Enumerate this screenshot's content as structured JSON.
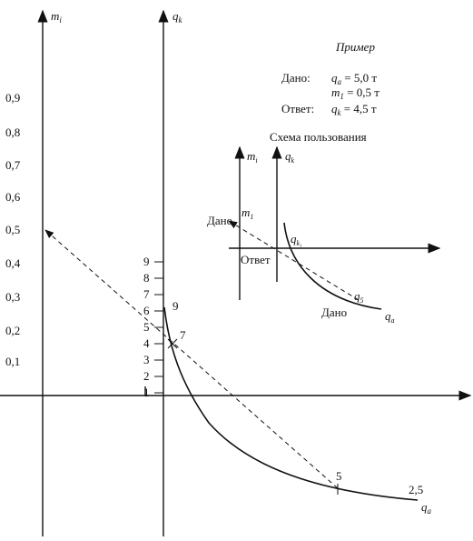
{
  "axes": {
    "m": {
      "main": "m",
      "sub": "i"
    },
    "q_k": {
      "main": "q",
      "sub": "k"
    },
    "q_a": {
      "main": "q",
      "sub": "a"
    }
  },
  "m_ticks": [
    "0,1",
    "0,2",
    "0,3",
    "0,4",
    "0,5",
    "0,6",
    "0,7",
    "0,8",
    "0,9"
  ],
  "qk_ticks": [
    "1",
    "2",
    "3",
    "4",
    "5",
    "6",
    "7",
    "8",
    "9"
  ],
  "curve_labels": {
    "p9": "9",
    "p7": "7",
    "p5": "5",
    "p25": "2,5"
  },
  "example": {
    "title": "Пример",
    "given_label": "Дано:",
    "qa": {
      "main": "q",
      "sub": "a",
      "rest": " = 5,0 т"
    },
    "m1": {
      "main": "m",
      "sub": "1",
      "rest": " = 0,5 т"
    },
    "answer_label": "Ответ:",
    "qk": {
      "main": "q",
      "sub": "k",
      "rest": " = 4,5 т"
    }
  },
  "scheme": {
    "title": "Схема пользования",
    "m_axis": {
      "main": "m",
      "sub": "i"
    },
    "qk_axis": {
      "main": "q",
      "sub": "k"
    },
    "given_left": "Дано",
    "m1": {
      "main": "m",
      "sub": "1"
    },
    "answer": "Ответ",
    "qk1": {
      "main": "q",
      "sub": "k₁"
    },
    "q5": {
      "main": "q",
      "sub": "5"
    },
    "given_right": "Дано",
    "qa": {
      "main": "q",
      "sub": "a"
    }
  }
}
